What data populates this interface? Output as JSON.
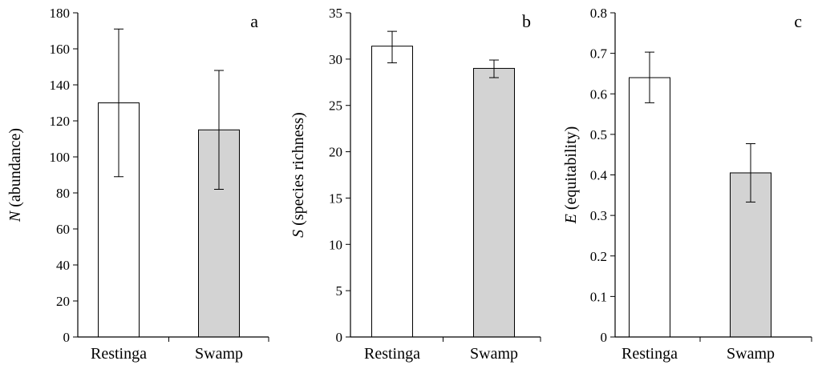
{
  "chart_data": [
    {
      "type": "bar",
      "panel_label": "a",
      "ylabel_symbol": "N",
      "ylabel_text": " (abundance)",
      "categories": [
        "Restinga",
        "Swamp"
      ],
      "values": [
        130,
        115
      ],
      "error_low": [
        89,
        82
      ],
      "error_high": [
        171,
        148
      ],
      "bar_colors": [
        "#ffffff",
        "#d3d3d3"
      ],
      "ylim": [
        0,
        180
      ],
      "yticks": [
        0,
        20,
        40,
        60,
        80,
        100,
        120,
        140,
        160,
        180
      ],
      "ytick_labels": [
        "0",
        "20",
        "40",
        "60",
        "80",
        "100",
        "120",
        "140",
        "160",
        "180"
      ],
      "grid": false
    },
    {
      "type": "bar",
      "panel_label": "b",
      "ylabel_symbol": "S",
      "ylabel_text": " (species richness)",
      "categories": [
        "Restinga",
        "Swamp"
      ],
      "values": [
        31.4,
        29.0
      ],
      "error_low": [
        29.6,
        28.0
      ],
      "error_high": [
        33.0,
        29.9
      ],
      "bar_colors": [
        "#ffffff",
        "#d3d3d3"
      ],
      "ylim": [
        0,
        35
      ],
      "yticks": [
        0,
        5,
        10,
        15,
        20,
        25,
        30,
        35
      ],
      "ytick_labels": [
        "0",
        "5",
        "10",
        "15",
        "20",
        "25",
        "30",
        "35"
      ],
      "grid": false
    },
    {
      "type": "bar",
      "panel_label": "c",
      "ylabel_symbol": "E",
      "ylabel_text": " (equitability)",
      "categories": [
        "Restinga",
        "Swamp"
      ],
      "values": [
        0.64,
        0.405
      ],
      "error_low": [
        0.578,
        0.333
      ],
      "error_high": [
        0.703,
        0.477
      ],
      "bar_colors": [
        "#ffffff",
        "#d3d3d3"
      ],
      "ylim": [
        0,
        0.8
      ],
      "yticks": [
        0,
        0.1,
        0.2,
        0.3,
        0.4,
        0.5,
        0.6,
        0.7,
        0.8
      ],
      "ytick_labels": [
        "0",
        "0.1",
        "0.2",
        "0.3",
        "0.4",
        "0.5",
        "0.6",
        "0.7",
        "0.8"
      ],
      "grid": false
    }
  ]
}
